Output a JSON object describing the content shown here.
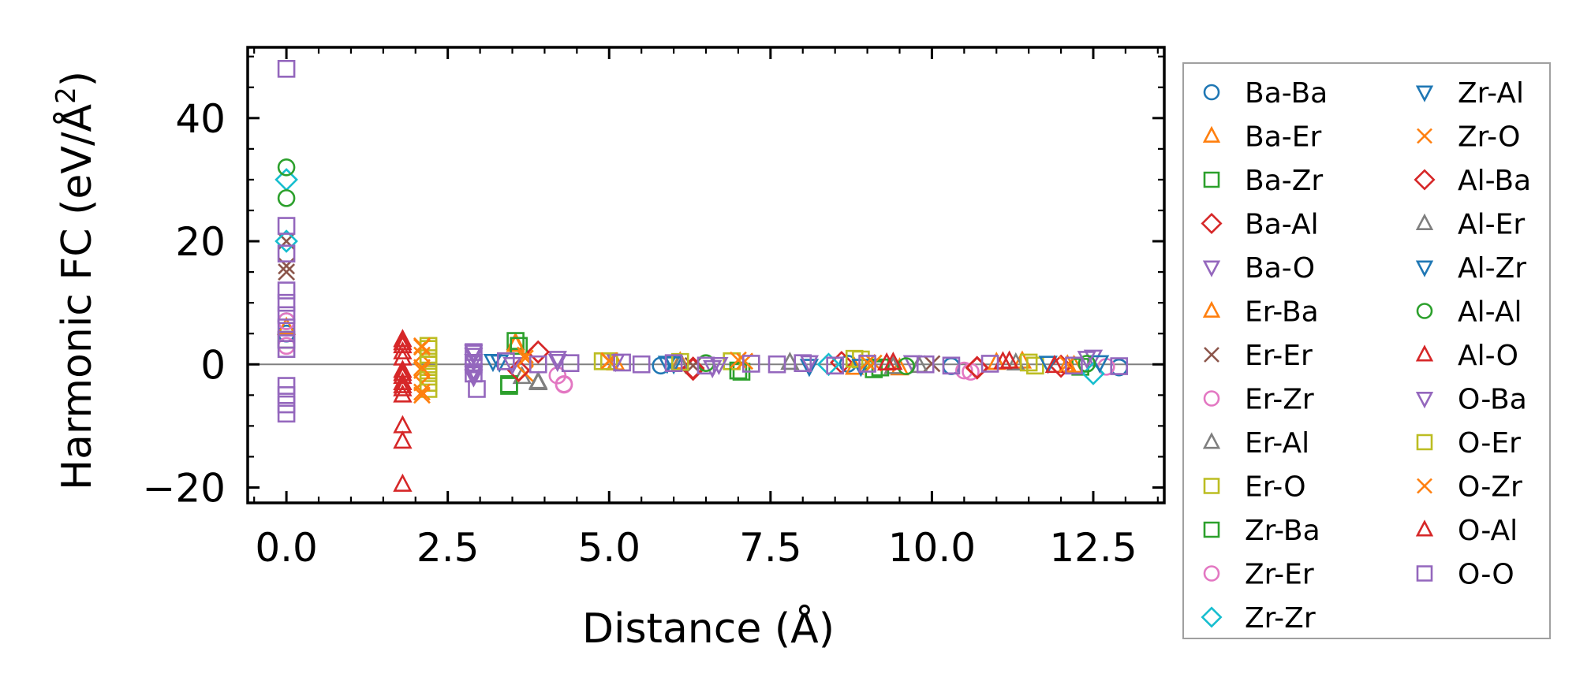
{
  "chart_data": {
    "type": "scatter",
    "title": "",
    "xlabel": "Distance (Å)",
    "ylabel": "Harmonic FC (eV/Å²)",
    "ylabel_parts": {
      "main": "Harmonic FC (eV/Å",
      "sup": "2",
      "close": ")"
    },
    "xlim": [
      -0.6,
      13.6
    ],
    "ylim": [
      -22.5,
      51.5
    ],
    "xticks": [
      0.0,
      2.5,
      5.0,
      7.5,
      10.0,
      12.5
    ],
    "xtick_labels": [
      "0.0",
      "2.5",
      "5.0",
      "7.5",
      "10.0",
      "12.5"
    ],
    "yticks": [
      -20,
      0,
      20,
      40
    ],
    "ytick_labels": [
      "−20",
      "0",
      "20",
      "40"
    ],
    "zero_line": true,
    "legend_position": "right (outside plot)",
    "series": [
      {
        "name": "Ba-Ba",
        "marker": "circle",
        "color": "#1f77b4",
        "points": [
          [
            0,
            7
          ],
          [
            0,
            5
          ],
          [
            5.8,
            -0.2
          ],
          [
            8.7,
            0.1
          ],
          [
            10.3,
            -0.3
          ],
          [
            12.9,
            -0.5
          ]
        ]
      },
      {
        "name": "Ba-Er",
        "marker": "triangle-up",
        "color": "#ff7f0e",
        "points": [
          [
            0,
            6
          ],
          [
            3.55,
            3.5
          ],
          [
            6.1,
            0.4
          ],
          [
            9.5,
            -0.6
          ],
          [
            11,
            0.3
          ],
          [
            12.2,
            -0.2
          ]
        ]
      },
      {
        "name": "Ba-Zr",
        "marker": "square",
        "color": "#2ca02c",
        "points": [
          [
            0,
            4
          ],
          [
            3.55,
            3.8
          ],
          [
            3.45,
            -3.5
          ],
          [
            7.05,
            -1.2
          ],
          [
            9.1,
            -0.8
          ],
          [
            12.3,
            -0.4
          ]
        ]
      },
      {
        "name": "Ba-Al",
        "marker": "diamond",
        "color": "#d62728",
        "points": [
          [
            3.9,
            2
          ],
          [
            6.3,
            -0.8
          ],
          [
            8.6,
            0.3
          ],
          [
            10.7,
            -0.6
          ],
          [
            12,
            -0.3
          ]
        ]
      },
      {
        "name": "Ba-O",
        "marker": "triangle-down",
        "color": "#9467bd",
        "points": [
          [
            2.9,
            1.5
          ],
          [
            2.9,
            -1.5
          ],
          [
            4.2,
            1
          ],
          [
            6.6,
            -0.5
          ],
          [
            9.7,
            0.3
          ],
          [
            12.5,
            1.2
          ]
        ]
      },
      {
        "name": "Er-Ba",
        "marker": "triangle-up",
        "color": "#ff7f0e",
        "points": [
          [
            3.55,
            3.2
          ],
          [
            5.1,
            0.2
          ],
          [
            8.8,
            -0.5
          ],
          [
            11.4,
            0.5
          ],
          [
            12.1,
            -0.1
          ]
        ]
      },
      {
        "name": "Er-Er",
        "marker": "x",
        "color": "#8c564b",
        "points": [
          [
            0,
            20
          ],
          [
            0,
            16
          ],
          [
            0,
            15
          ],
          [
            6.3,
            -0.2
          ],
          [
            10,
            0.1
          ]
        ]
      },
      {
        "name": "Er-Zr",
        "marker": "circle",
        "color": "#e377c2",
        "points": [
          [
            0,
            3
          ],
          [
            4.3,
            -3.3
          ],
          [
            4.2,
            -1.8
          ],
          [
            10.5,
            -1
          ],
          [
            12.7,
            -0.4
          ]
        ]
      },
      {
        "name": "Er-Al",
        "marker": "triangle-up",
        "color": "#7f7f7f",
        "points": [
          [
            3.9,
            -3
          ],
          [
            3.65,
            -2
          ],
          [
            7.8,
            0.3
          ],
          [
            9.4,
            -0.4
          ]
        ]
      },
      {
        "name": "Er-O",
        "marker": "square",
        "color": "#bcbd22",
        "points": [
          [
            2.2,
            3
          ],
          [
            2.2,
            1
          ],
          [
            2.2,
            -1
          ],
          [
            2.2,
            -3
          ],
          [
            2.2,
            -4
          ],
          [
            5,
            0.5
          ],
          [
            6.9,
            0.5
          ],
          [
            8.9,
            0.8
          ],
          [
            11.6,
            -0.2
          ]
        ]
      },
      {
        "name": "Zr-Ba",
        "marker": "square",
        "color": "#2ca02c",
        "points": [
          [
            3.45,
            -3.2
          ],
          [
            3.6,
            3
          ],
          [
            7,
            -1
          ],
          [
            9.2,
            -0.5
          ]
        ]
      },
      {
        "name": "Zr-Er",
        "marker": "circle",
        "color": "#e377c2",
        "points": [
          [
            0,
            7
          ],
          [
            4.3,
            -3.2
          ],
          [
            10.6,
            -1.2
          ]
        ]
      },
      {
        "name": "Zr-Zr",
        "marker": "diamond",
        "color": "#17becf",
        "points": [
          [
            0,
            30
          ],
          [
            0,
            20
          ],
          [
            12.5,
            -1.5
          ],
          [
            8.4,
            0
          ]
        ]
      },
      {
        "name": "Zr-Al",
        "marker": "triangle-down",
        "color": "#1f77b4",
        "points": [
          [
            3.2,
            0.5
          ],
          [
            5.9,
            0.2
          ],
          [
            8.1,
            -0.3
          ],
          [
            11.8,
            0.2
          ]
        ]
      },
      {
        "name": "Zr-O",
        "marker": "x",
        "color": "#ff7f0e",
        "points": [
          [
            2.1,
            3
          ],
          [
            2.1,
            1.5
          ],
          [
            2.1,
            -1
          ],
          [
            2.1,
            -3
          ],
          [
            2.1,
            -5
          ],
          [
            3.7,
            1.5
          ],
          [
            3.7,
            -1.5
          ],
          [
            5,
            0.5
          ],
          [
            7.1,
            0.5
          ],
          [
            9.1,
            0.2
          ]
        ]
      },
      {
        "name": "Al-Ba",
        "marker": "diamond",
        "color": "#d62728",
        "points": [
          [
            3.9,
            2
          ],
          [
            3.6,
            -1
          ],
          [
            6.3,
            -0.6
          ],
          [
            10.7,
            -0.5
          ]
        ]
      },
      {
        "name": "Al-Er",
        "marker": "triangle-up",
        "color": "#7f7f7f",
        "points": [
          [
            3.9,
            -2.8
          ],
          [
            6.1,
            0.1
          ],
          [
            9.8,
            -0.2
          ],
          [
            11.3,
            0.2
          ]
        ]
      },
      {
        "name": "Al-Zr",
        "marker": "triangle-down",
        "color": "#1f77b4",
        "points": [
          [
            3.3,
            0.4
          ],
          [
            6.0,
            0.1
          ],
          [
            8.9,
            -0.3
          ],
          [
            12.6,
            0.3
          ]
        ]
      },
      {
        "name": "Al-Al",
        "marker": "circle",
        "color": "#2ca02c",
        "points": [
          [
            0,
            32
          ],
          [
            0,
            27
          ],
          [
            6.5,
            0.2
          ],
          [
            9.6,
            -0.3
          ],
          [
            12.4,
            0.1
          ]
        ]
      },
      {
        "name": "Al-O",
        "marker": "triangle-up",
        "color": "#d62728",
        "points": [
          [
            1.8,
            4
          ],
          [
            1.8,
            3
          ],
          [
            1.8,
            2
          ],
          [
            1.8,
            1
          ],
          [
            1.8,
            -1
          ],
          [
            1.8,
            -2
          ],
          [
            1.8,
            -3
          ],
          [
            1.8,
            -4
          ],
          [
            1.8,
            -5
          ],
          [
            1.8,
            -10
          ],
          [
            1.8,
            -12.5
          ],
          [
            1.8,
            -19.5
          ],
          [
            9.4,
            0.3
          ],
          [
            11.2,
            0.5
          ],
          [
            11.9,
            -0.2
          ]
        ]
      },
      {
        "name": "O-Ba",
        "marker": "triangle-down",
        "color": "#9467bd",
        "points": [
          [
            2.9,
            2
          ],
          [
            2.9,
            0.5
          ],
          [
            2.9,
            -1
          ],
          [
            2.9,
            -2
          ],
          [
            3.5,
            0
          ],
          [
            4.2,
            0.5
          ],
          [
            5.1,
            0.5
          ],
          [
            6.7,
            0
          ],
          [
            8.1,
            0.3
          ],
          [
            12.4,
            1
          ]
        ]
      },
      {
        "name": "O-Er",
        "marker": "square",
        "color": "#bcbd22",
        "points": [
          [
            2.2,
            2.5
          ],
          [
            2.2,
            0
          ],
          [
            2.2,
            -2
          ],
          [
            4.9,
            0.5
          ],
          [
            6.1,
            0.4
          ],
          [
            8.8,
            0.9
          ],
          [
            11.5,
            0.3
          ]
        ]
      },
      {
        "name": "O-Zr",
        "marker": "x",
        "color": "#ff7f0e",
        "points": [
          [
            2.1,
            2.8
          ],
          [
            2.1,
            -0.5
          ],
          [
            2.1,
            -4.5
          ],
          [
            3.7,
            1
          ],
          [
            5.0,
            0.6
          ],
          [
            7.0,
            0.7
          ],
          [
            9.0,
            0.3
          ],
          [
            12.1,
            0
          ]
        ]
      },
      {
        "name": "O-Al",
        "marker": "triangle-up",
        "color": "#d62728",
        "points": [
          [
            1.8,
            3.5
          ],
          [
            1.8,
            -1.5
          ],
          [
            1.8,
            -3.5
          ],
          [
            9.3,
            0.2
          ],
          [
            11.1,
            0.4
          ]
        ]
      },
      {
        "name": "O-O",
        "marker": "square",
        "color": "#9467bd",
        "points": [
          [
            0,
            48
          ],
          [
            0,
            22.5
          ],
          [
            0,
            18
          ],
          [
            0,
            12
          ],
          [
            0,
            10
          ],
          [
            0,
            8
          ],
          [
            0,
            6
          ],
          [
            0,
            4
          ],
          [
            0,
            2.5
          ],
          [
            0,
            -3.5
          ],
          [
            0,
            -5
          ],
          [
            0,
            -6.5
          ],
          [
            0,
            -8
          ],
          [
            2.9,
            2
          ],
          [
            2.9,
            0
          ],
          [
            2.9,
            -1.5
          ],
          [
            2.95,
            -4
          ],
          [
            3.4,
            0.5
          ],
          [
            3.9,
            0
          ],
          [
            4.4,
            0.2
          ],
          [
            5.2,
            0.3
          ],
          [
            5.5,
            0
          ],
          [
            6.0,
            0.2
          ],
          [
            6.5,
            -0.2
          ],
          [
            7.2,
            0.1
          ],
          [
            7.6,
            0
          ],
          [
            8.0,
            0.2
          ],
          [
            8.5,
            -0.2
          ],
          [
            9.0,
            0.1
          ],
          [
            9.9,
            0
          ],
          [
            10.3,
            -0.2
          ],
          [
            10.9,
            0.1
          ],
          [
            12.2,
            -0.2
          ],
          [
            12.9,
            -0.3
          ]
        ]
      }
    ]
  }
}
